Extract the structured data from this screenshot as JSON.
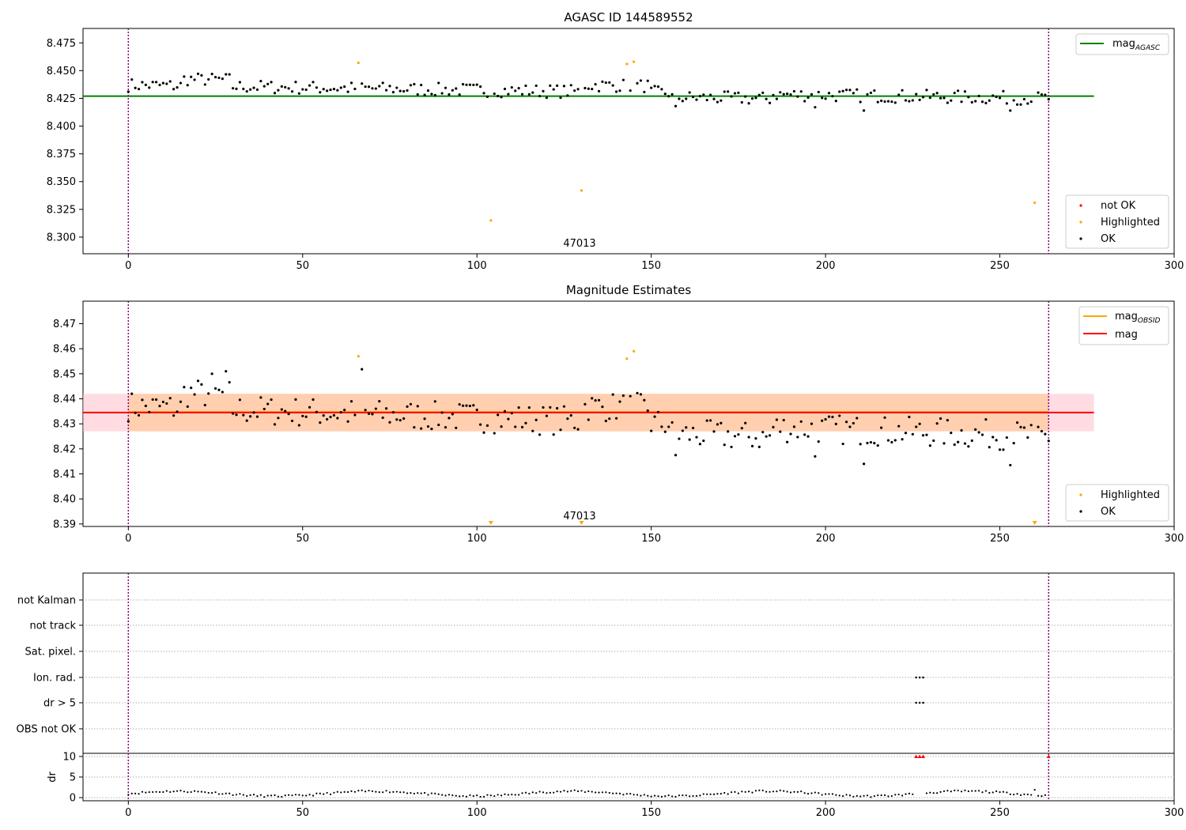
{
  "chart_data": [
    {
      "type": "scatter",
      "title": "AGASC ID 144589552",
      "xlim": [
        -13,
        300
      ],
      "ylim": [
        8.285,
        8.488
      ],
      "xticks": [
        0,
        50,
        100,
        150,
        200,
        250,
        300
      ],
      "yticks": [
        8.3,
        8.325,
        8.35,
        8.375,
        8.4,
        8.425,
        8.45,
        8.475
      ],
      "grid": false,
      "vlines": [
        0,
        264
      ],
      "obsid_label": "47013",
      "obsid_x": 132,
      "mag_agasc": 8.427,
      "hline_xrange": [
        -13,
        277
      ],
      "legend_lines": [
        {
          "label": "mag",
          "sub": "AGASC",
          "color": "#008000"
        }
      ],
      "legend_markers": [
        {
          "label": "not OK",
          "color": "#ff0000"
        },
        {
          "label": "Highlighted",
          "color": "#ffa500"
        },
        {
          "label": "OK",
          "color": "#000000"
        }
      ],
      "highlighted": [
        [
          66,
          8.457
        ],
        [
          104,
          8.315
        ],
        [
          130,
          8.342
        ],
        [
          143,
          8.456
        ],
        [
          145,
          8.458
        ],
        [
          260,
          8.331
        ]
      ]
    },
    {
      "type": "scatter",
      "title": "Magnitude Estimates",
      "xlim": [
        -13,
        300
      ],
      "ylim": [
        8.389,
        8.479
      ],
      "xticks": [
        0,
        50,
        100,
        150,
        200,
        250,
        300
      ],
      "yticks": [
        8.39,
        8.4,
        8.41,
        8.42,
        8.43,
        8.44,
        8.45,
        8.46,
        8.47
      ],
      "grid": false,
      "vlines": [
        0,
        264
      ],
      "obsid_label": "47013",
      "obsid_x": 132,
      "mag": 8.4345,
      "mag_obsid": 8.4347,
      "band_outer": [
        8.427,
        8.442
      ],
      "band_inner": [
        8.427,
        8.442
      ],
      "hline_xrange": [
        -13,
        277
      ],
      "legend_lines": [
        {
          "label": "mag",
          "sub": "OBSID",
          "color": "#ffa500"
        },
        {
          "label": "mag",
          "sub": "",
          "color": "#ff0000"
        }
      ],
      "legend_markers": [
        {
          "label": "Highlighted",
          "color": "#ffa500"
        },
        {
          "label": "OK",
          "color": "#000000"
        }
      ],
      "highlighted": [
        [
          66,
          8.457
        ],
        [
          143,
          8.456
        ],
        [
          145,
          8.459
        ]
      ],
      "out_of_range_low": [
        104,
        130,
        260
      ]
    },
    {
      "type": "scatter",
      "title": "",
      "xlim": [
        -13,
        300
      ],
      "xticks": [
        0,
        50,
        100,
        150,
        200,
        250,
        300
      ],
      "flag_rows": [
        "not Kalman",
        "not track",
        "Sat. pixel.",
        "Ion. rad.",
        "dr > 5",
        "OBS not OK"
      ],
      "flag_points": {
        "Ion. rad.": [
          226,
          227,
          228
        ],
        "dr > 5": [
          226,
          227,
          228
        ]
      },
      "dr_ylabel": "dr",
      "dr_yticks": [
        0,
        5,
        10
      ],
      "dr_ylim": [
        -0.5,
        11.5
      ],
      "vlines": [
        0,
        264
      ],
      "dr_high": [
        [
          226,
          10
        ],
        [
          227,
          10
        ],
        [
          228,
          10
        ],
        [
          264,
          10
        ]
      ]
    }
  ]
}
